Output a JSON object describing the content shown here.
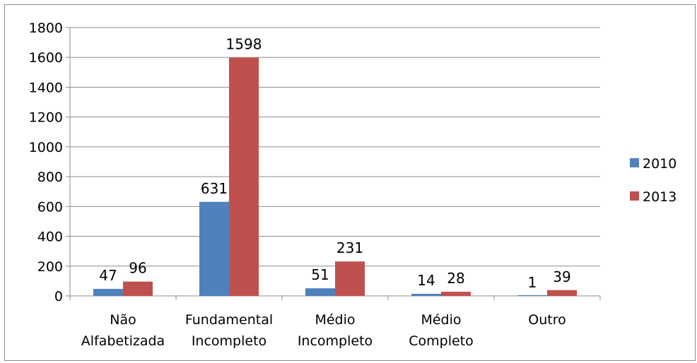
{
  "chart_data": {
    "type": "bar",
    "title": "",
    "xlabel": "",
    "ylabel": "",
    "ylim": [
      0,
      1800
    ],
    "yticks": [
      0,
      200,
      400,
      600,
      800,
      1000,
      1200,
      1400,
      1600,
      1800
    ],
    "grid": true,
    "legend_position": "right",
    "categories": [
      [
        "Não",
        "Alfabetizada"
      ],
      [
        "Fundamental",
        "Incompleto"
      ],
      [
        "Médio",
        "Incompleto"
      ],
      [
        "Médio",
        "Completo"
      ],
      [
        "Outro"
      ]
    ],
    "series": [
      {
        "name": "2010",
        "color": "#4f81bd",
        "values": [
          47,
          631,
          51,
          14,
          1
        ]
      },
      {
        "name": "2013",
        "color": "#c0504d",
        "values": [
          96,
          1598,
          231,
          28,
          39
        ]
      }
    ]
  }
}
